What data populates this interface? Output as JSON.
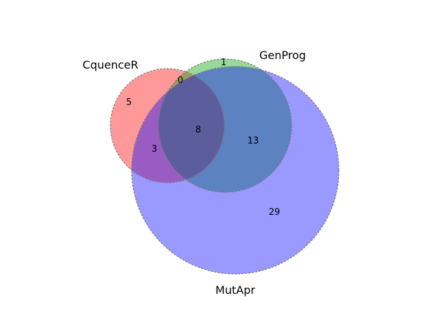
{
  "sets": [
    {
      "id": "cquencer",
      "name": "CquenceR",
      "color": "#ff9999"
    },
    {
      "id": "genprog",
      "name": "GenProg",
      "color": "#99cc99"
    },
    {
      "id": "mutapr",
      "name": "MutApr",
      "color": "#9999ff"
    }
  ],
  "regions": {
    "cquencer_only": "5",
    "genprog_only": "1",
    "mutapr_only": "29",
    "cquencer_genprog": "0",
    "cquencer_mutapr": "3",
    "genprog_mutapr": "13",
    "all_three": "8"
  },
  "colors": {
    "cquencer_fill": "#ff0000",
    "genprog_fill": "#00a000",
    "mutapr_fill": "#0000ff",
    "outline": "#777777"
  }
}
